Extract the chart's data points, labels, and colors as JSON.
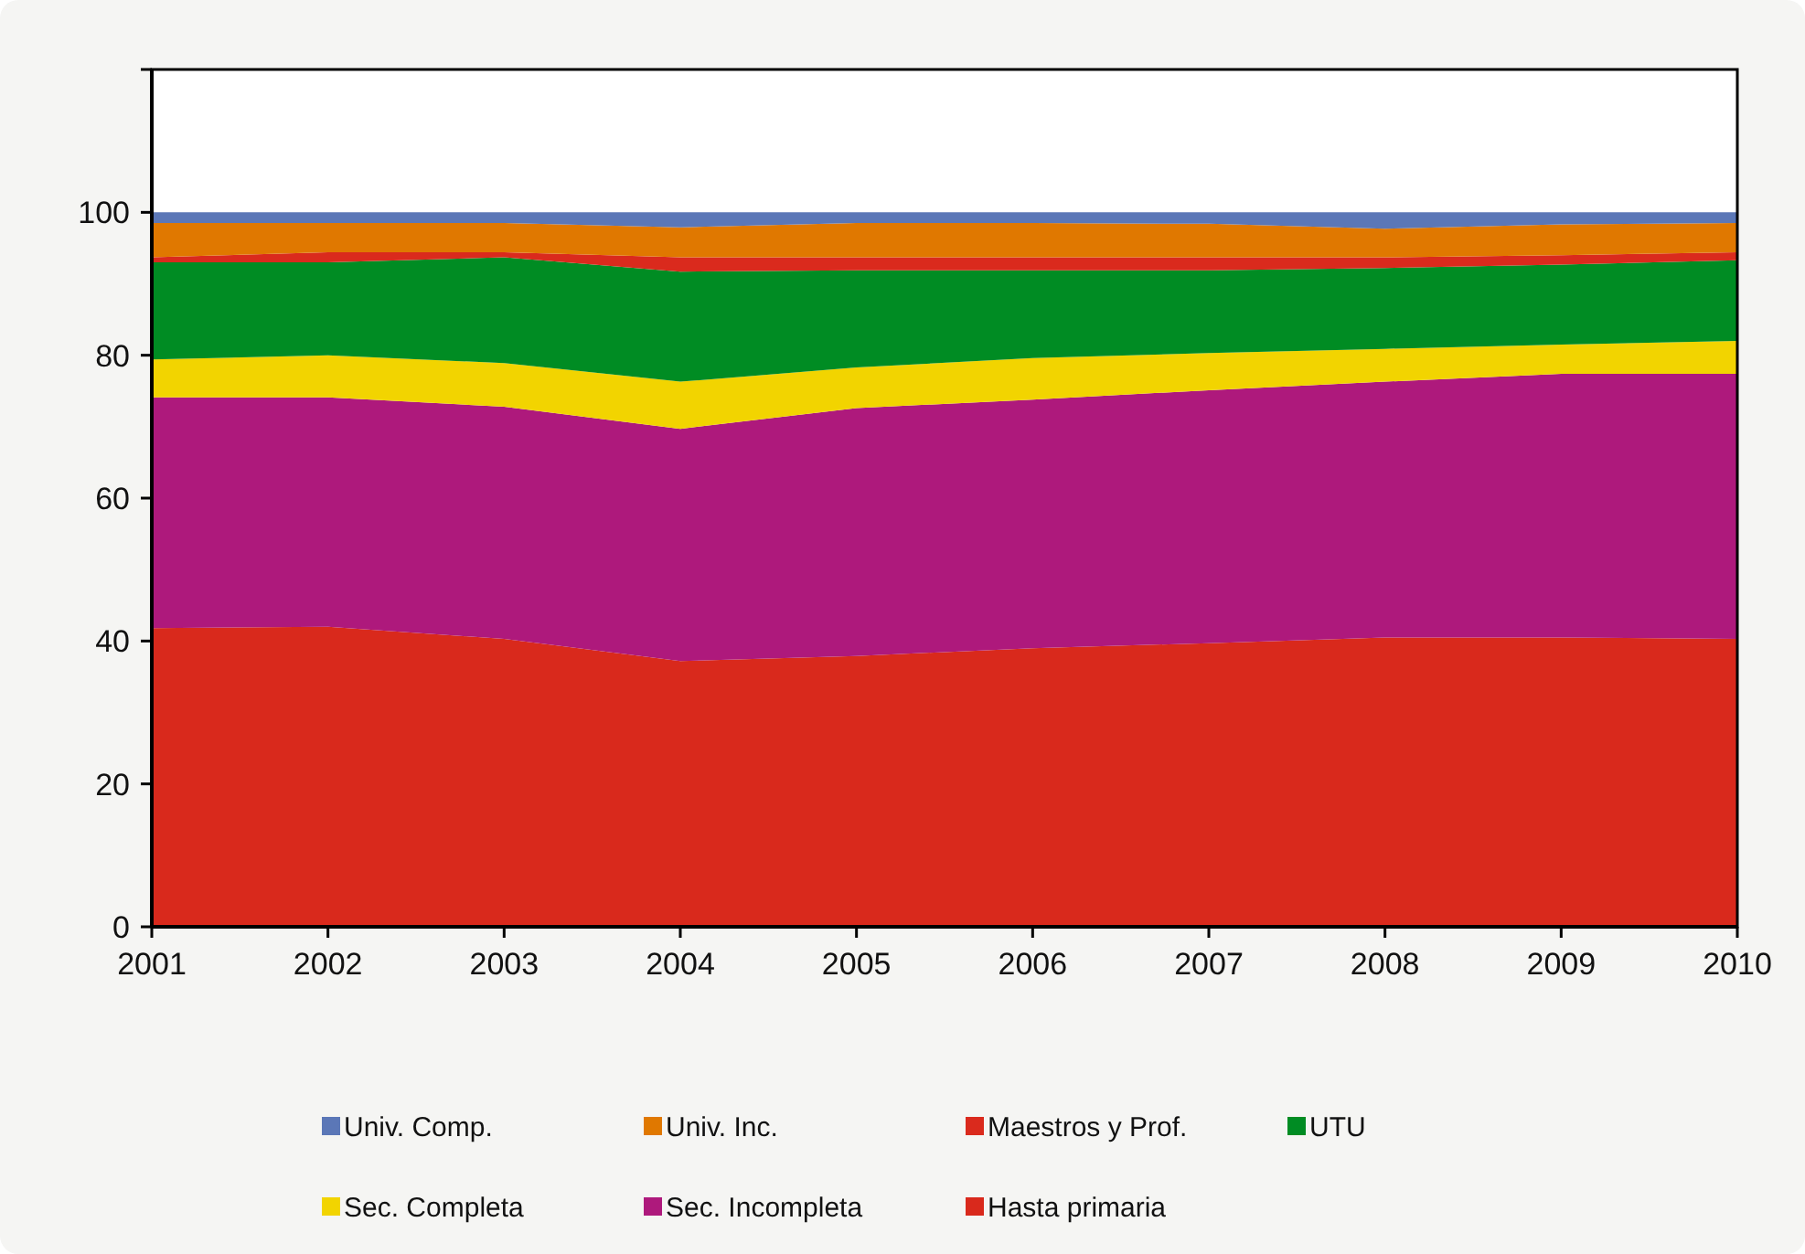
{
  "chart_data": {
    "type": "area",
    "stacked": true,
    "x": [
      2001,
      2002,
      2003,
      2004,
      2005,
      2006,
      2007,
      2008,
      2009,
      2010
    ],
    "xlim": [
      2001,
      2010
    ],
    "xticks": [
      2001,
      2002,
      2003,
      2004,
      2005,
      2006,
      2007,
      2008,
      2009,
      2010
    ],
    "ylim": [
      0,
      120
    ],
    "yticks": [
      0,
      20,
      40,
      60,
      80,
      100,
      {
        "value": 120,
        "label": null
      }
    ],
    "legend": "bottom",
    "grid": false,
    "series": [
      {
        "name": "Hasta primaria",
        "color": "#d9291c",
        "values": [
          41.8,
          42,
          40.3,
          37.2,
          37.9,
          39,
          39.7,
          40.5,
          40.5,
          40.3
        ]
      },
      {
        "name": "Sec. Incompleta",
        "color": "#ae197c",
        "values": [
          32.3,
          32.1,
          32.5,
          32.5,
          34.7,
          34.8,
          35.4,
          35.8,
          36.9,
          37.1
        ]
      },
      {
        "name": "Sec. Completa",
        "color": "#f2d400",
        "values": [
          5.3,
          5.9,
          6.1,
          6.6,
          5.7,
          5.8,
          5.2,
          4.6,
          4.1,
          4.6
        ]
      },
      {
        "name": "UTU",
        "color": "#008c23",
        "values": [
          13.6,
          13,
          14.8,
          15.4,
          13.6,
          12.3,
          11.6,
          11.3,
          11.2,
          11.3
        ]
      },
      {
        "name": "Maestros y Prof.",
        "color": "#da2a1d",
        "values": [
          0.7,
          1.4,
          0.7,
          2,
          1.8,
          1.8,
          1.8,
          1.5,
          1.3,
          1.1
        ]
      },
      {
        "name": "Univ. Inc.",
        "color": "#e07800",
        "values": [
          4.8,
          4.1,
          4.1,
          4.2,
          4.8,
          4.8,
          4.7,
          4,
          4.3,
          4.1
        ]
      },
      {
        "name": "Univ. Comp.",
        "color": "#5b77b7",
        "values": [
          1.5,
          1.5,
          1.5,
          2.1,
          1.5,
          1.5,
          1.6,
          2.3,
          1.7,
          1.5
        ]
      }
    ]
  }
}
